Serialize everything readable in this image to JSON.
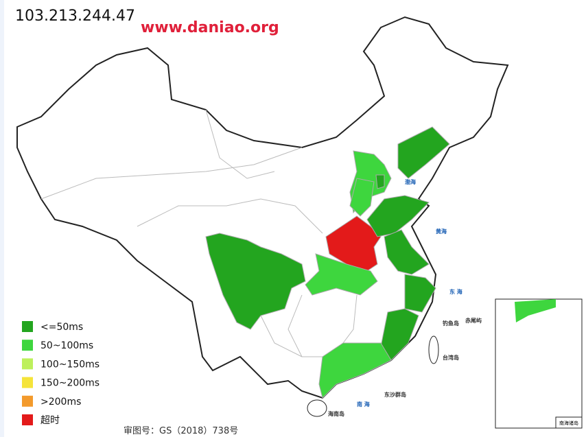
{
  "header": {
    "ip": "103.213.244.47",
    "watermark": "www.daniao.org"
  },
  "legend": [
    {
      "label": "<=50ms",
      "color": "#23a51f"
    },
    {
      "label": "50~100ms",
      "color": "#3ed63e"
    },
    {
      "label": "100~150ms",
      "color": "#bdf05c"
    },
    {
      "label": "150~200ms",
      "color": "#f5e43a"
    },
    {
      "label": ">200ms",
      "color": "#f39a2c"
    },
    {
      "label": "超时",
      "color": "#e31a1a"
    }
  ],
  "map_labels": [
    "渤海",
    "黄海",
    "东 海",
    "南 海",
    "台湾岛",
    "海南岛",
    "钓鱼岛",
    "赤尾屿",
    "东沙群岛",
    "南海诸岛"
  ],
  "footer": "审图号：GS（2018）738号"
}
